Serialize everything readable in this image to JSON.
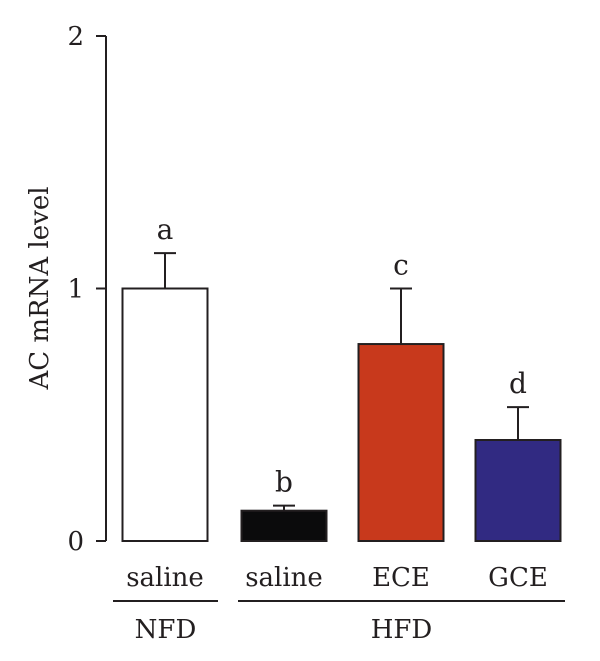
{
  "chart_data": {
    "type": "bar",
    "title": "",
    "xlabel": "",
    "ylabel": "AC mRNA level",
    "ylim": [
      0,
      2
    ],
    "yticks": [
      0,
      1,
      2
    ],
    "grid": false,
    "categories": [
      "saline",
      "saline",
      "ECE",
      "GCE"
    ],
    "groups": [
      {
        "label": "NFD",
        "categories": [
          0
        ]
      },
      {
        "label": "HFD",
        "categories": [
          1,
          2,
          3
        ]
      }
    ],
    "values": [
      1.0,
      0.12,
      0.78,
      0.4
    ],
    "errors": [
      0.14,
      0.02,
      0.22,
      0.13
    ],
    "significance": [
      "a",
      "b",
      "c",
      "d"
    ],
    "colors": [
      "#ffffff",
      "#0b0b0c",
      "#c8391c",
      "#312a82"
    ],
    "edge_color": "#231f20"
  }
}
